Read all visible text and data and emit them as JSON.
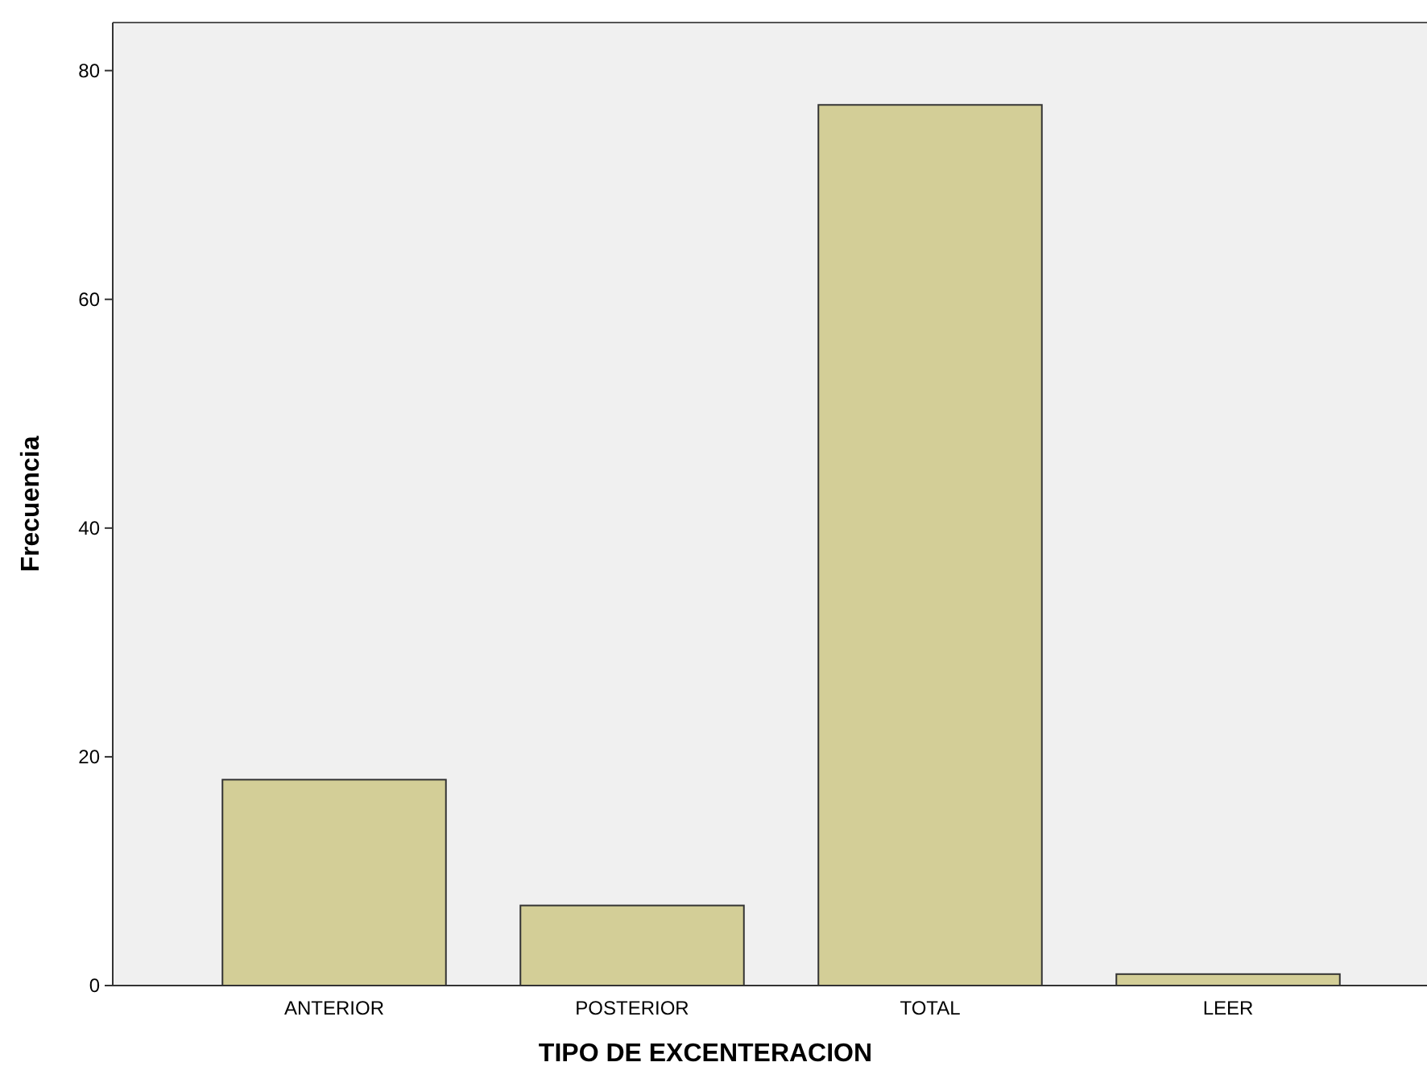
{
  "chart_data": {
    "type": "bar",
    "xlabel": "TIPO DE EXCENTERACION",
    "ylabel": "Frecuencia",
    "categories": [
      "ANTERIOR",
      "POSTERIOR",
      "TOTAL",
      "LEER"
    ],
    "values": [
      18,
      7,
      77,
      1
    ],
    "color": "#d3ce97",
    "ylim": [
      0,
      84.2
    ],
    "yticks": [
      0,
      20,
      40,
      60,
      80
    ],
    "grid": false
  }
}
